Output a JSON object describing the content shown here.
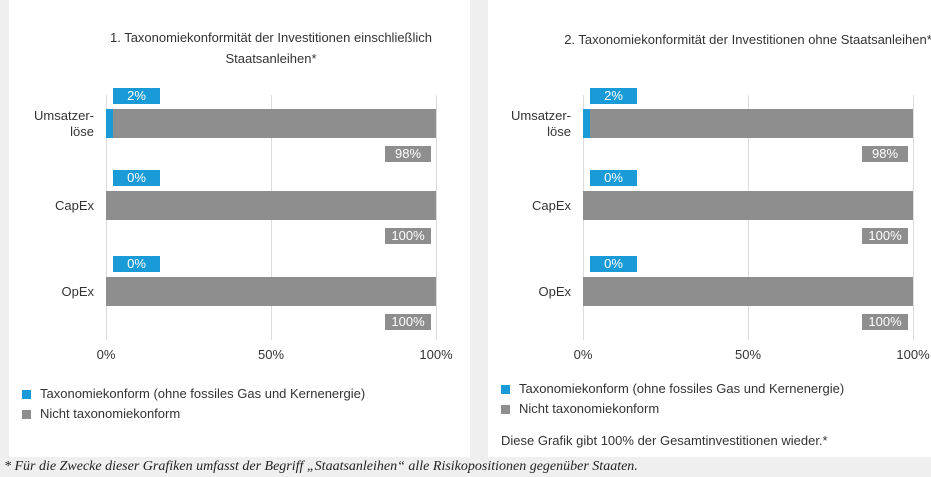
{
  "chart_data": [
    {
      "type": "bar",
      "orientation": "horizontal",
      "stacked": true,
      "title": "1. Taxonomiekonformität der Investitionen einschließlich Staatsanleihen*",
      "categories": [
        "Umsatzer-\nlöse",
        "CapEx",
        "OpEx"
      ],
      "series": [
        {
          "name": "Taxonomiekonform (ohne fossiles Gas und Kernenergie)",
          "color": "#1a9ad6",
          "values": [
            2,
            0,
            0
          ],
          "value_labels": [
            "2%",
            "0%",
            "0%"
          ]
        },
        {
          "name": "Nicht taxonomiekonform",
          "color": "#8e8e8e",
          "values": [
            98,
            100,
            100
          ],
          "value_labels": [
            "98%",
            "100%",
            "100%"
          ]
        }
      ],
      "xlim": [
        0,
        100
      ],
      "xticks": [
        {
          "value": 0,
          "label": "0%"
        },
        {
          "value": 50,
          "label": "50%"
        },
        {
          "value": 100,
          "label": "100%"
        }
      ],
      "grid": true
    },
    {
      "type": "bar",
      "orientation": "horizontal",
      "stacked": true,
      "title": "2. Taxonomiekonformität der Investitionen ohne Staatsanleihen*",
      "categories": [
        "Umsatzer-\nlöse",
        "CapEx",
        "OpEx"
      ],
      "series": [
        {
          "name": "Taxonomiekonform (ohne fossiles Gas und Kernenergie)",
          "color": "#1a9ad6",
          "values": [
            2,
            0,
            0
          ],
          "value_labels": [
            "2%",
            "0%",
            "0%"
          ]
        },
        {
          "name": "Nicht taxonomiekonform",
          "color": "#8e8e8e",
          "values": [
            98,
            100,
            100
          ],
          "value_labels": [
            "98%",
            "100%",
            "100%"
          ]
        }
      ],
      "xlim": [
        0,
        100
      ],
      "xticks": [
        {
          "value": 0,
          "label": "0%"
        },
        {
          "value": 50,
          "label": "50%"
        },
        {
          "value": 100,
          "label": "100%"
        }
      ],
      "grid": true,
      "note": "Diese Grafik gibt 100% der Gesamtinvestitionen wieder.*"
    }
  ],
  "footnote": "* Für die Zwecke dieser Grafiken umfasst der Begriff „Staatsanleihen“ alle Risikopositionen gegenüber Staaten."
}
